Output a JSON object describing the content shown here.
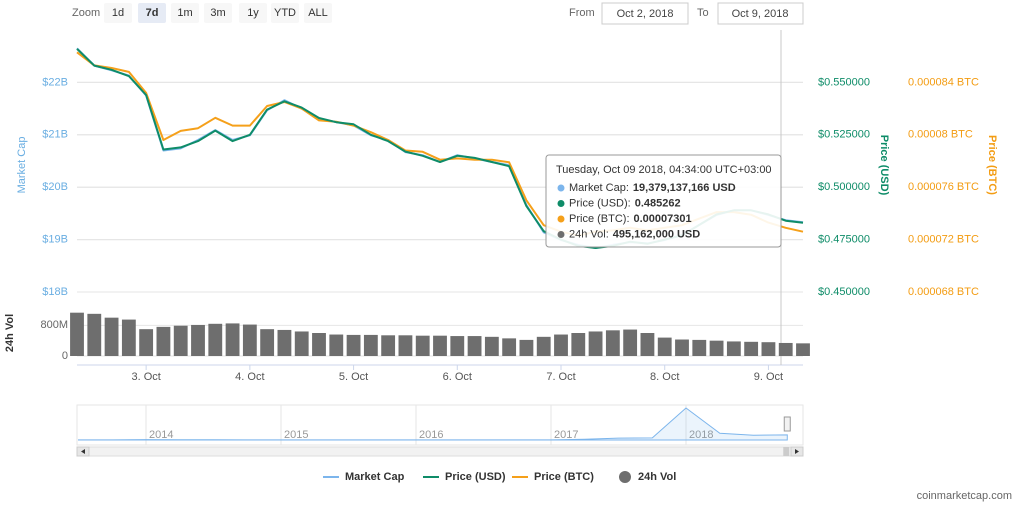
{
  "toolbar": {
    "zoom_label": "Zoom",
    "buttons": [
      "1d",
      "7d",
      "1m",
      "3m",
      "1y",
      "YTD",
      "ALL"
    ],
    "selected": "7d",
    "from_label": "From",
    "from": "Oct 2, 2018",
    "to_label": "To",
    "to": "Oct 9, 2018"
  },
  "chart_data": [
    {
      "type": "line",
      "categories": [
        null,
        null,
        null,
        null,
        "3. Oct",
        null,
        null,
        null,
        null,
        null,
        "4. Oct",
        null,
        null,
        null,
        null,
        null,
        "5. Oct",
        null,
        null,
        null,
        null,
        null,
        "6. Oct",
        null,
        null,
        null,
        null,
        null,
        "7. Oct",
        null,
        null,
        null,
        null,
        null,
        "8. Oct",
        null,
        null,
        null,
        null,
        null,
        "9. Oct",
        null,
        null
      ],
      "series": [
        {
          "name": "Market Cap",
          "color": "#7cb5ec",
          "axis": "y",
          "values": [
            22650000000,
            22320000000,
            22230000000,
            22130000000,
            21750000000,
            20700000000,
            20740000000,
            20900000000,
            21090000000,
            20900000000,
            20990000000,
            21470000000,
            21660000000,
            21500000000,
            21310000000,
            21240000000,
            21180000000,
            20990000000,
            20900000000,
            20670000000,
            20610000000,
            20480000000,
            20610000000,
            20550000000,
            20480000000,
            20420000000,
            19660000000,
            19140000000,
            18990000000,
            18900000000,
            18840000000,
            18900000000,
            18950000000,
            18930000000,
            18990000000,
            19090000000,
            19280000000,
            19470000000,
            19560000000,
            19560000000,
            19470000000,
            19370000000,
            19330000000
          ]
        },
        {
          "name": "Price (USD)",
          "color": "#0e8c68",
          "axis": "y2",
          "values": [
            0.566,
            0.558,
            0.556,
            0.553,
            0.544,
            0.518,
            0.519,
            0.522,
            0.527,
            0.522,
            0.525,
            0.537,
            0.541,
            0.538,
            0.533,
            0.531,
            0.53,
            0.525,
            0.522,
            0.517,
            0.515,
            0.512,
            0.515,
            0.514,
            0.512,
            0.51,
            0.491,
            0.479,
            0.475,
            0.472,
            0.471,
            0.472,
            0.474,
            0.473,
            0.475,
            0.477,
            0.482,
            0.487,
            0.489,
            0.489,
            0.487,
            0.484,
            0.483
          ]
        },
        {
          "name": "Price (BTC)",
          "color": "#f5a01a",
          "axis": "y3",
          "values": [
            8.63e-05,
            8.53e-05,
            8.51e-05,
            8.48e-05,
            8.32e-05,
            7.96e-05,
            8.03e-05,
            8.05e-05,
            8.13e-05,
            8.07e-05,
            8.07e-05,
            8.22e-05,
            8.25e-05,
            8.2e-05,
            8.11e-05,
            8.1e-05,
            8.07e-05,
            8.02e-05,
            7.96e-05,
            7.88e-05,
            7.87e-05,
            7.81e-05,
            7.82e-05,
            7.81e-05,
            7.81e-05,
            7.79e-05,
            7.5e-05,
            7.31e-05,
            7.26e-05,
            7.23e-05,
            7.26e-05,
            7.27e-05,
            7.29e-05,
            7.27e-05,
            7.29e-05,
            7.31e-05,
            7.36e-05,
            7.41e-05,
            7.41e-05,
            7.39e-05,
            7.33e-05,
            7.29e-05,
            7.26e-05
          ]
        },
        {
          "name": "24h Vol",
          "color": "#6e6e6e",
          "axis": "y4",
          "type": "bar",
          "values": [
            1130000000,
            1100000000,
            1000000000,
            950000000,
            700000000,
            760000000,
            790000000,
            810000000,
            840000000,
            850000000,
            820000000,
            700000000,
            680000000,
            640000000,
            600000000,
            560000000,
            550000000,
            550000000,
            540000000,
            540000000,
            530000000,
            530000000,
            520000000,
            520000000,
            500000000,
            460000000,
            420000000,
            500000000,
            560000000,
            600000000,
            640000000,
            670000000,
            690000000,
            600000000,
            480000000,
            430000000,
            420000000,
            400000000,
            380000000,
            370000000,
            360000000,
            340000000,
            330000000
          ]
        }
      ],
      "ylabel": "Market Cap",
      "ylim": [
        18000000000,
        23000000000
      ],
      "yticks": [
        {
          "value": 18000000000,
          "label": "$18B"
        },
        {
          "value": 19000000000,
          "label": "$19B"
        },
        {
          "value": 20000000000,
          "label": "$20B"
        },
        {
          "value": 21000000000,
          "label": "$21B"
        },
        {
          "value": 22000000000,
          "label": "$22B"
        }
      ],
      "y2label": "Price (USD)",
      "y2lim": [
        0.45,
        0.575
      ],
      "y2ticks": [
        {
          "value": 0.45,
          "label": "$0.450000"
        },
        {
          "value": 0.475,
          "label": "$0.475000"
        },
        {
          "value": 0.5,
          "label": "$0.500000"
        },
        {
          "value": 0.525,
          "label": "$0.525000"
        },
        {
          "value": 0.55,
          "label": "$0.550000"
        }
      ],
      "y3label": "Price (BTC)",
      "y3lim": [
        6.8e-05,
        8.8e-05
      ],
      "y3ticks": [
        {
          "value": 6.8e-05,
          "label": "0.000068 BTC"
        },
        {
          "value": 7.2e-05,
          "label": "0.000072 BTC"
        },
        {
          "value": 7.6e-05,
          "label": "0.000076 BTC"
        },
        {
          "value": 8e-05,
          "label": "0.00008 BTC"
        },
        {
          "value": 8.4e-05,
          "label": "0.000084 BTC"
        }
      ],
      "y4label": "24h Vol",
      "y4lim": [
        0,
        1200000000
      ],
      "y4ticks": [
        0,
        {
          "value": 800000000,
          "label": "800M"
        }
      ],
      "grid": true
    },
    {
      "type": "area",
      "color": "#7cb5ec",
      "categories": [
        null,
        null,
        "2014",
        null,
        null,
        null,
        "2015",
        null,
        null,
        null,
        "2016",
        null,
        null,
        null,
        "2017",
        null,
        null,
        null,
        "2018",
        null,
        null,
        null
      ],
      "values": [
        300000000,
        400000000,
        1500000000,
        900000000,
        600000000,
        400000000,
        500000000,
        300000000,
        300000000,
        200000000,
        250000000,
        250000000,
        250000000,
        300000000,
        300000000,
        3000000000,
        7000000000,
        8000000000,
        120000000000,
        25000000000,
        18000000000,
        19000000000
      ]
    }
  ],
  "tooltip": {
    "title": "Tuesday, Oct 09 2018, 04:34:00 UTC+03:00",
    "rows": [
      {
        "label": "Market Cap:",
        "value": "19,379,137,166 USD"
      },
      {
        "label": "Price (USD):",
        "value": "0.485262"
      },
      {
        "label": "Price (BTC):",
        "value": "0.00007301"
      },
      {
        "label": "24h Vol:",
        "value": "495,162,000 USD"
      }
    ]
  },
  "credit": "coinmarketcap.com"
}
